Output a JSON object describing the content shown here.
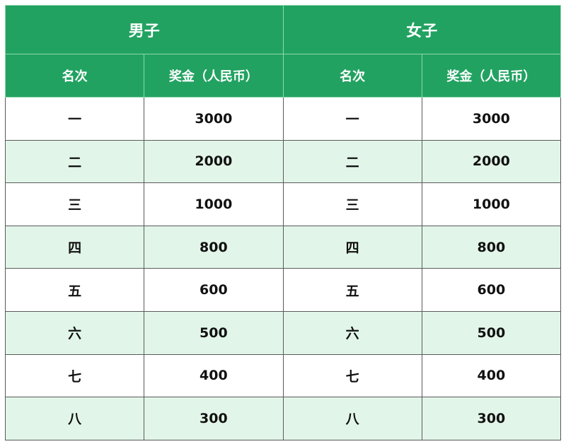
{
  "groups": [
    "男子",
    "女子"
  ],
  "columns": [
    "名次",
    "奖金（人民币）"
  ],
  "rows": [
    {
      "rank": "一",
      "prize": "3000"
    },
    {
      "rank": "二",
      "prize": "2000"
    },
    {
      "rank": "三",
      "prize": "1000"
    },
    {
      "rank": "四",
      "prize": "800"
    },
    {
      "rank": "五",
      "prize": "600"
    },
    {
      "rank": "六",
      "prize": "500"
    },
    {
      "rank": "七",
      "prize": "400"
    },
    {
      "rank": "八",
      "prize": "300"
    }
  ],
  "colors": {
    "header": "#22a261",
    "stripe": "#e2f5e9"
  }
}
